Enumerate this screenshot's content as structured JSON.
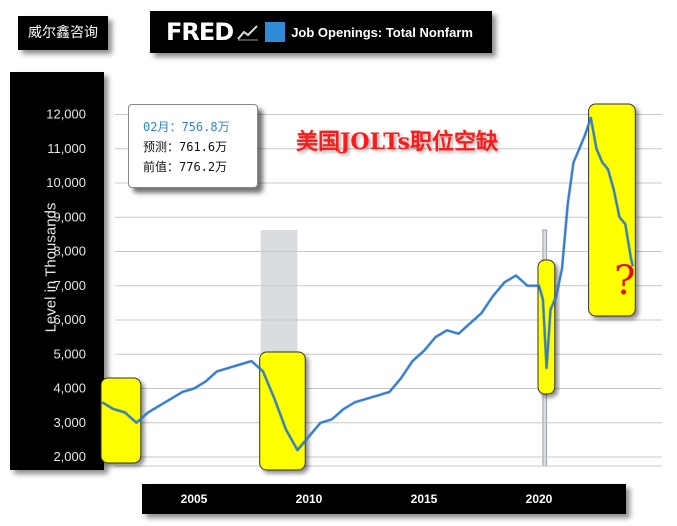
{
  "source_badge": "威尔鑫咨询",
  "header": {
    "logo": "FRED",
    "logo_icon": "line-chart-icon",
    "swatch_color": "#2f8bd6",
    "title": "Job Openings: Total Nonfarm"
  },
  "info_box": {
    "latest": "02月：756.8万",
    "forecast": "预测：761.6万",
    "previous": "前值：776.2万"
  },
  "headline": "美国JOLTs职位空缺",
  "question_mark": "?",
  "colors": {
    "line": "#2f7fd1",
    "highlight": "#ffff00",
    "recession": "#d9dde0",
    "headline": "#ff1a1a"
  },
  "chart_data": {
    "type": "line",
    "title": "Job Openings: Total Nonfarm",
    "xlabel": "",
    "ylabel": "Level in Thousands",
    "ylim": [
      1500,
      12500
    ],
    "xlim": [
      2001.0,
      2024.25
    ],
    "yticks": [
      2000,
      3000,
      4000,
      5000,
      6000,
      7000,
      8000,
      9000,
      10000,
      11000,
      12000
    ],
    "ytick_labels": [
      "2,000",
      "3,000",
      "4,000",
      "5,000",
      "6,000",
      "7,000",
      "8,000",
      "9,000",
      "10,000",
      "11,000",
      "12,000"
    ],
    "xticks": [
      2005,
      2010,
      2015,
      2020
    ],
    "xtick_labels": [
      "2005",
      "2010",
      "2015",
      "2020"
    ],
    "grid": true,
    "recession_shading": [
      [
        2007.9,
        2009.5
      ],
      [
        2020.17,
        2020.33
      ]
    ],
    "highlight_regions": [
      [
        2001.0,
        2002.6
      ],
      [
        2007.9,
        2009.75
      ],
      [
        2020.0,
        2020.6
      ],
      [
        2022.2,
        2024.1
      ]
    ],
    "series": [
      {
        "x": [
          2001.0,
          2001.5,
          2002.0,
          2002.5,
          2003.0,
          2003.5,
          2004.0,
          2004.5,
          2005.0,
          2005.5,
          2006.0,
          2006.5,
          2007.0,
          2007.5,
          2008.0,
          2008.5,
          2009.0,
          2009.5,
          2010.0,
          2010.5,
          2011.0,
          2011.5,
          2012.0,
          2012.5,
          2013.0,
          2013.5,
          2014.0,
          2014.5,
          2015.0,
          2015.5,
          2016.0,
          2016.5,
          2017.0,
          2017.5,
          2018.0,
          2018.5,
          2019.0,
          2019.5,
          2020.0,
          2020.17,
          2020.33,
          2020.5,
          2020.75,
          2021.0,
          2021.25,
          2021.5,
          2021.75,
          2022.0,
          2022.25,
          2022.5,
          2022.75,
          2023.0,
          2023.25,
          2023.5,
          2023.75,
          2024.0,
          2024.08
        ],
        "values": [
          3600,
          3400,
          3300,
          3000,
          3300,
          3500,
          3700,
          3900,
          4000,
          4200,
          4500,
          4600,
          4700,
          4800,
          4500,
          3700,
          2800,
          2200,
          2600,
          3000,
          3100,
          3400,
          3600,
          3700,
          3800,
          3900,
          4300,
          4800,
          5100,
          5500,
          5700,
          5600,
          5900,
          6200,
          6700,
          7100,
          7300,
          7000,
          7000,
          6600,
          4600,
          6300,
          6700,
          7500,
          9400,
          10600,
          11000,
          11400,
          11900,
          11000,
          10600,
          10400,
          9800,
          9000,
          8800,
          7800,
          7568
        ]
      }
    ]
  }
}
